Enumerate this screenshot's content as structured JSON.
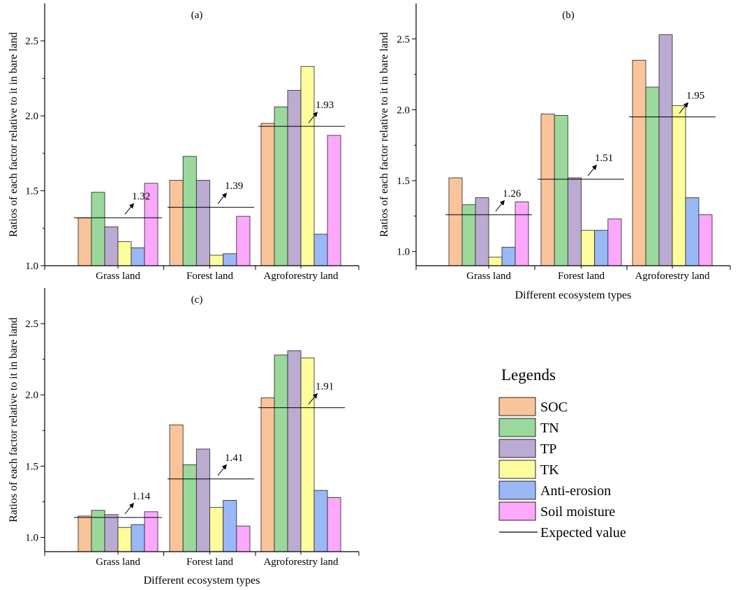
{
  "legend": {
    "title": "Legends",
    "items": [
      {
        "label": "SOC",
        "color": "#FAC49A"
      },
      {
        "label": "TN",
        "color": "#9AD89C"
      },
      {
        "label": "TP",
        "color": "#BBAAD1"
      },
      {
        "label": "TK",
        "color": "#FDFD9D"
      },
      {
        "label": "Anti-erosion",
        "color": "#99B8F5"
      },
      {
        "label": "Soil moisture",
        "color": "#FCA8FC"
      }
    ],
    "expected_label": "Expected value"
  },
  "chart_data": [
    {
      "type": "bar",
      "panel_label": "(a)",
      "categories": [
        "Grass land",
        "Forest land",
        "Agroforestry land"
      ],
      "ylabel": "Ratios of each factor relative to it in bare land",
      "xlabel": "",
      "ylim": [
        1.0,
        2.75
      ],
      "yticks": [
        "1.0",
        "1.5",
        "2.0",
        "2.5"
      ],
      "series": [
        {
          "name": "SOC",
          "values": [
            1.32,
            1.57,
            1.95
          ]
        },
        {
          "name": "TN",
          "values": [
            1.49,
            1.73,
            2.06
          ]
        },
        {
          "name": "TP",
          "values": [
            1.26,
            1.57,
            2.17
          ]
        },
        {
          "name": "TK",
          "values": [
            1.16,
            1.07,
            2.33
          ]
        },
        {
          "name": "Anti-erosion",
          "values": [
            1.12,
            1.08,
            1.21
          ]
        },
        {
          "name": "Soil moisture",
          "values": [
            1.55,
            1.33,
            1.87
          ]
        }
      ],
      "expected_values": [
        1.32,
        1.39,
        1.93
      ],
      "expected_labels": [
        "1.32",
        "1.39",
        "1.93"
      ]
    },
    {
      "type": "bar",
      "panel_label": "(b)",
      "categories": [
        "Grass land",
        "Forest land",
        "Agroforestry land"
      ],
      "ylabel": "Ratios of each factor relative to it in bare land",
      "xlabel": "Different ecosystem types",
      "ylim": [
        0.9,
        2.75
      ],
      "yticks": [
        "1.0",
        "1.5",
        "2.0",
        "2.5"
      ],
      "series": [
        {
          "name": "SOC",
          "values": [
            1.52,
            1.97,
            2.35
          ]
        },
        {
          "name": "TN",
          "values": [
            1.33,
            1.96,
            2.16
          ]
        },
        {
          "name": "TP",
          "values": [
            1.38,
            1.52,
            2.53
          ]
        },
        {
          "name": "TK",
          "values": [
            0.96,
            1.15,
            2.03
          ]
        },
        {
          "name": "Anti-erosion",
          "values": [
            1.03,
            1.15,
            1.38
          ]
        },
        {
          "name": "Soil moisture",
          "values": [
            1.35,
            1.23,
            1.26
          ]
        }
      ],
      "expected_values": [
        1.26,
        1.51,
        1.95
      ],
      "expected_labels": [
        "1.26",
        "1.51",
        "1.95"
      ]
    },
    {
      "type": "bar",
      "panel_label": "(c)",
      "categories": [
        "Grass land",
        "Forest land",
        "Agroforestry land"
      ],
      "ylabel": "Ratios of each factor relative to it in bare land",
      "xlabel": "Different ecosystem types",
      "ylim": [
        0.9,
        2.75
      ],
      "yticks": [
        "1.0",
        "1.5",
        "2.0",
        "2.5"
      ],
      "series": [
        {
          "name": "SOC",
          "values": [
            1.15,
            1.79,
            1.98
          ]
        },
        {
          "name": "TN",
          "values": [
            1.19,
            1.51,
            2.28
          ]
        },
        {
          "name": "TP",
          "values": [
            1.16,
            1.62,
            2.31
          ]
        },
        {
          "name": "TK",
          "values": [
            1.07,
            1.21,
            2.26
          ]
        },
        {
          "name": "Anti-erosion",
          "values": [
            1.09,
            1.26,
            1.33
          ]
        },
        {
          "name": "Soil moisture",
          "values": [
            1.18,
            1.08,
            1.28
          ]
        }
      ],
      "expected_values": [
        1.14,
        1.41,
        1.91
      ],
      "expected_labels": [
        "1.14",
        "1.41",
        "1.91"
      ]
    }
  ]
}
